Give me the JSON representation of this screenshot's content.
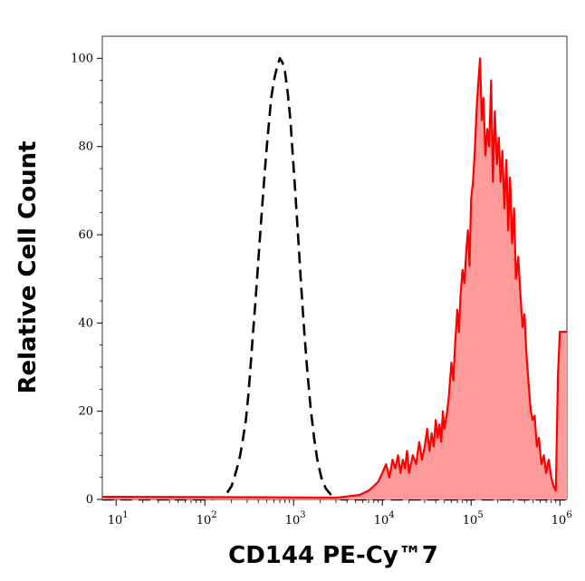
{
  "chart_data": {
    "type": "area",
    "xlabel": "CD144 PE-Cy™7",
    "ylabel": "Relative Cell Count",
    "x_scale": "log",
    "xlim": [
      7,
      1200000
    ],
    "ylim": [
      0,
      105
    ],
    "x_ticks": [
      {
        "value": 10,
        "base": "10",
        "exp": "1"
      },
      {
        "value": 100,
        "base": "10",
        "exp": "2"
      },
      {
        "value": 1000,
        "base": "10",
        "exp": "3"
      },
      {
        "value": 10000,
        "base": "10",
        "exp": "4"
      },
      {
        "value": 100000,
        "base": "10",
        "exp": "5"
      },
      {
        "value": 1000000,
        "base": "10",
        "exp": "6"
      }
    ],
    "y_ticks": [
      {
        "value": 0,
        "label": "0"
      },
      {
        "value": 20,
        "label": "20"
      },
      {
        "value": 40,
        "label": "40"
      },
      {
        "value": 60,
        "label": "60"
      },
      {
        "value": 80,
        "label": "80"
      },
      {
        "value": 100,
        "label": "100"
      }
    ],
    "grid": false,
    "legend": "none",
    "series": [
      {
        "style": "dashed",
        "color": "#000000",
        "fill": "none",
        "points": [
          [
            7,
            0
          ],
          [
            100,
            0
          ],
          [
            150,
            0.3
          ],
          [
            170,
            1
          ],
          [
            185,
            2
          ],
          [
            200,
            3
          ],
          [
            215,
            5
          ],
          [
            230,
            7
          ],
          [
            250,
            10
          ],
          [
            270,
            14
          ],
          [
            290,
            18
          ],
          [
            310,
            24
          ],
          [
            330,
            31
          ],
          [
            350,
            38
          ],
          [
            375,
            46
          ],
          [
            400,
            54
          ],
          [
            430,
            63
          ],
          [
            460,
            71
          ],
          [
            490,
            78
          ],
          [
            520,
            84
          ],
          [
            560,
            91
          ],
          [
            600,
            95
          ],
          [
            650,
            98
          ],
          [
            700,
            100
          ],
          [
            750,
            99
          ],
          [
            800,
            97
          ],
          [
            860,
            92
          ],
          [
            920,
            86
          ],
          [
            980,
            78
          ],
          [
            1050,
            69
          ],
          [
            1130,
            59
          ],
          [
            1220,
            48
          ],
          [
            1320,
            38
          ],
          [
            1430,
            29
          ],
          [
            1550,
            21
          ],
          [
            1700,
            14
          ],
          [
            1850,
            9
          ],
          [
            2050,
            5
          ],
          [
            2300,
            2.5
          ],
          [
            2600,
            1.2
          ],
          [
            3000,
            0.5
          ],
          [
            3500,
            0
          ],
          [
            1200000,
            0
          ]
        ]
      },
      {
        "style": "solid",
        "color": "#ff0000",
        "fill": "#fe9a9a",
        "points": [
          [
            7,
            0.6
          ],
          [
            500,
            0.5
          ],
          [
            3000,
            0.4
          ],
          [
            5500,
            1
          ],
          [
            7000,
            2
          ],
          [
            8000,
            3
          ],
          [
            9000,
            4
          ],
          [
            10000,
            6
          ],
          [
            11000,
            8
          ],
          [
            12000,
            5
          ],
          [
            13000,
            9
          ],
          [
            14000,
            7
          ],
          [
            15000,
            10
          ],
          [
            16000,
            6
          ],
          [
            17000,
            9
          ],
          [
            18000,
            7
          ],
          [
            19000,
            11
          ],
          [
            20000,
            6
          ],
          [
            22000,
            10
          ],
          [
            24000,
            8
          ],
          [
            26000,
            13
          ],
          [
            28000,
            9
          ],
          [
            30000,
            12
          ],
          [
            32000,
            16
          ],
          [
            34000,
            11
          ],
          [
            36000,
            15
          ],
          [
            38000,
            12
          ],
          [
            40000,
            18
          ],
          [
            42000,
            14
          ],
          [
            44000,
            17
          ],
          [
            46000,
            13
          ],
          [
            48000,
            20
          ],
          [
            50000,
            16
          ],
          [
            53000,
            19
          ],
          [
            56000,
            23
          ],
          [
            60000,
            31
          ],
          [
            63000,
            27
          ],
          [
            66000,
            35
          ],
          [
            70000,
            43
          ],
          [
            73000,
            38
          ],
          [
            76000,
            46
          ],
          [
            80000,
            52
          ],
          [
            84000,
            49
          ],
          [
            88000,
            56
          ],
          [
            92000,
            61
          ],
          [
            96000,
            53
          ],
          [
            100000,
            68
          ],
          [
            105000,
            72
          ],
          [
            110000,
            79
          ],
          [
            115000,
            88
          ],
          [
            120000,
            94
          ],
          [
            126000,
            100
          ],
          [
            132000,
            86
          ],
          [
            138000,
            91
          ],
          [
            145000,
            78
          ],
          [
            152000,
            84
          ],
          [
            160000,
            80
          ],
          [
            168000,
            95
          ],
          [
            176000,
            72
          ],
          [
            185000,
            88
          ],
          [
            195000,
            76
          ],
          [
            205000,
            82
          ],
          [
            215000,
            72
          ],
          [
            225000,
            79
          ],
          [
            237000,
            66
          ],
          [
            250000,
            77
          ],
          [
            262000,
            61
          ],
          [
            275000,
            73
          ],
          [
            290000,
            58
          ],
          [
            305000,
            66
          ],
          [
            320000,
            50
          ],
          [
            340000,
            55
          ],
          [
            360000,
            46
          ],
          [
            380000,
            39
          ],
          [
            400000,
            42
          ],
          [
            420000,
            33
          ],
          [
            445000,
            26
          ],
          [
            470000,
            20
          ],
          [
            495000,
            18
          ],
          [
            520000,
            19
          ],
          [
            550000,
            12
          ],
          [
            580000,
            14
          ],
          [
            620000,
            8
          ],
          [
            660000,
            10
          ],
          [
            700000,
            6
          ],
          [
            750000,
            9
          ],
          [
            800000,
            5
          ],
          [
            850000,
            3
          ],
          [
            900000,
            2
          ],
          [
            950000,
            28
          ],
          [
            1000000,
            38
          ],
          [
            1200000,
            38
          ]
        ]
      }
    ]
  }
}
